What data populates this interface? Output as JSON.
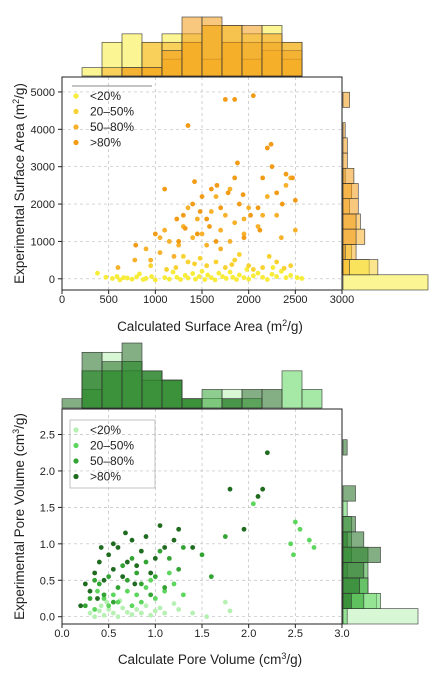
{
  "chart_data": [
    {
      "type": "scatter",
      "xlabel": "Calculated Surface Area (m²/g)",
      "ylabel": "Experimental Surface Area (m²/g)",
      "xlim": [
        0,
        3000
      ],
      "ylim": [
        -300,
        5400
      ],
      "xticks": [
        0,
        500,
        1000,
        1500,
        2000,
        2500,
        3000
      ],
      "yticks": [
        0,
        1000,
        2000,
        3000,
        4000,
        5000
      ],
      "grid": true,
      "legend_placement": "top-left",
      "marginal_histograms": true,
      "series": [
        {
          "name": "<20%",
          "color": "#f7ec3a",
          "points": [
            [
              380,
              150
            ],
            [
              470,
              40
            ],
            [
              540,
              10
            ],
            [
              590,
              60
            ],
            [
              620,
              -30
            ],
            [
              660,
              30
            ],
            [
              700,
              20
            ],
            [
              750,
              -10
            ],
            [
              800,
              50
            ],
            [
              830,
              130
            ],
            [
              870,
              -20
            ],
            [
              900,
              10
            ],
            [
              960,
              60
            ],
            [
              1000,
              -30
            ],
            [
              1100,
              30
            ],
            [
              1150,
              -10
            ],
            [
              1190,
              180
            ],
            [
              1230,
              40
            ],
            [
              1270,
              -20
            ],
            [
              1320,
              90
            ],
            [
              1350,
              20
            ],
            [
              1400,
              140
            ],
            [
              1430,
              -10
            ],
            [
              1470,
              60
            ],
            [
              1500,
              200
            ],
            [
              1530,
              -20
            ],
            [
              1560,
              100
            ],
            [
              1600,
              30
            ],
            [
              1640,
              -30
            ],
            [
              1680,
              150
            ],
            [
              1720,
              60
            ],
            [
              1760,
              10
            ],
            [
              1800,
              180
            ],
            [
              1830,
              40
            ],
            [
              1870,
              -20
            ],
            [
              1900,
              100
            ],
            [
              1950,
              30
            ],
            [
              2000,
              -10
            ],
            [
              2050,
              80
            ],
            [
              2100,
              150
            ],
            [
              2150,
              40
            ],
            [
              2200,
              -20
            ],
            [
              2250,
              120
            ],
            [
              2300,
              60
            ],
            [
              2350,
              200
            ],
            [
              2400,
              30
            ],
            [
              2450,
              90
            ],
            [
              2520,
              30
            ],
            [
              2570,
              10
            ],
            [
              1980,
              250
            ],
            [
              2260,
              300
            ]
          ]
        },
        {
          "name": "20–50%",
          "color": "#f8d230",
          "points": [
            [
              1220,
              300
            ],
            [
              1350,
              450
            ],
            [
              1420,
              400
            ],
            [
              1550,
              350
            ],
            [
              1650,
              450
            ],
            [
              1750,
              300
            ],
            [
              1850,
              500
            ],
            [
              2000,
              350
            ],
            [
              2150,
              300
            ],
            [
              2300,
              450
            ],
            [
              2450,
              350
            ],
            [
              1300,
              600
            ],
            [
              1900,
              650
            ],
            [
              2050,
              250
            ],
            [
              1120,
              250
            ],
            [
              950,
              350
            ],
            [
              1480,
              550
            ],
            [
              2220,
              600
            ],
            [
              1820,
              380
            ],
            [
              2380,
              280
            ]
          ]
        },
        {
          "name": "50–80%",
          "color": "#f7b12a",
          "points": [
            [
              600,
              300
            ],
            [
              780,
              500
            ],
            [
              900,
              800
            ],
            [
              1050,
              700
            ],
            [
              1150,
              1000
            ],
            [
              1250,
              900
            ],
            [
              1300,
              1400
            ],
            [
              1400,
              1100
            ],
            [
              1450,
              1600
            ],
            [
              1500,
              1200
            ],
            [
              1550,
              900
            ],
            [
              1600,
              1800
            ],
            [
              1700,
              1300
            ],
            [
              1750,
              1700
            ],
            [
              1800,
              1000
            ],
            [
              1850,
              1500
            ],
            [
              1950,
              1200
            ],
            [
              2000,
              1900
            ],
            [
              2100,
              1400
            ],
            [
              2200,
              2200
            ],
            [
              2300,
              1700
            ],
            [
              2400,
              2500
            ],
            [
              2500,
              1300
            ],
            [
              2450,
              2700
            ],
            [
              1650,
              2200
            ],
            [
              1350,
              1900
            ],
            [
              1100,
              1300
            ],
            [
              1800,
              2400
            ],
            [
              1950,
              1600
            ],
            [
              1200,
              600
            ],
            [
              950,
              500
            ],
            [
              2150,
              1700
            ],
            [
              1050,
              1100
            ],
            [
              2350,
              1100
            ],
            [
              1700,
              800
            ]
          ]
        },
        {
          "name": ">80%",
          "color": "#f29b16",
          "points": [
            [
              790,
              900
            ],
            [
              1000,
              1200
            ],
            [
              1100,
              2400
            ],
            [
              1250,
              1000
            ],
            [
              1300,
              1700
            ],
            [
              1350,
              4100
            ],
            [
              1400,
              2000
            ],
            [
              1450,
              1200
            ],
            [
              1500,
              2200
            ],
            [
              1550,
              1600
            ],
            [
              1600,
              2400
            ],
            [
              1650,
              1000
            ],
            [
              1700,
              1900
            ],
            [
              1750,
              4800
            ],
            [
              1850,
              4800
            ],
            [
              1850,
              2700
            ],
            [
              1950,
              1100
            ],
            [
              2050,
              4900
            ],
            [
              2100,
              1900
            ],
            [
              2150,
              2700
            ],
            [
              2200,
              3500
            ],
            [
              2250,
              3000
            ],
            [
              2300,
              2300
            ],
            [
              2400,
              2800
            ],
            [
              2470,
              2700
            ],
            [
              2500,
              2100
            ],
            [
              1420,
              2600
            ],
            [
              1580,
              1400
            ],
            [
              1880,
              3100
            ],
            [
              1320,
              1350
            ],
            [
              1780,
              2300
            ],
            [
              2020,
              1700
            ],
            [
              1480,
              1800
            ],
            [
              1900,
              2000
            ],
            [
              2120,
              1300
            ],
            [
              1230,
              1600
            ],
            [
              2240,
              3600
            ],
            [
              1660,
              2500
            ],
            [
              1940,
              2250
            ],
            [
              2360,
              2000
            ]
          ]
        }
      ]
    },
    {
      "type": "scatter",
      "xlabel": "Calculate Pore Volume (cm³/g)",
      "ylabel": "Experimental Pore Volume (cm³/g)",
      "xlim": [
        0,
        3.0
      ],
      "ylim": [
        -0.1,
        2.85
      ],
      "xticks": [
        0.0,
        0.5,
        1.0,
        1.5,
        2.0,
        2.5,
        3.0
      ],
      "yticks": [
        0.0,
        0.5,
        1.0,
        1.5,
        2.0,
        2.5
      ],
      "grid": true,
      "legend_placement": "top-left",
      "marginal_histograms": true,
      "series": [
        {
          "name": "<20%",
          "color": "#b6f0b3",
          "points": [
            [
              0.3,
              0.05
            ],
            [
              0.35,
              0.0
            ],
            [
              0.4,
              0.08
            ],
            [
              0.45,
              0.02
            ],
            [
              0.5,
              0.1
            ],
            [
              0.55,
              0.05
            ],
            [
              0.6,
              0.0
            ],
            [
              0.65,
              0.12
            ],
            [
              0.7,
              0.06
            ],
            [
              0.75,
              0.03
            ],
            [
              0.8,
              0.1
            ],
            [
              0.85,
              0.05
            ],
            [
              0.9,
              0.15
            ],
            [
              0.95,
              0.02
            ],
            [
              1.0,
              0.08
            ],
            [
              1.05,
              0.12
            ],
            [
              1.1,
              0.05
            ],
            [
              1.2,
              0.18
            ],
            [
              1.25,
              0.1
            ],
            [
              1.4,
              0.05
            ],
            [
              1.55,
              0.0
            ],
            [
              1.75,
              0.2
            ],
            [
              1.8,
              0.08
            ],
            [
              0.48,
              0.2
            ],
            [
              0.62,
              0.22
            ],
            [
              0.42,
              0.15
            ]
          ]
        },
        {
          "name": "20–50%",
          "color": "#5cd65c",
          "points": [
            [
              0.35,
              0.1
            ],
            [
              0.45,
              0.25
            ],
            [
              0.5,
              0.15
            ],
            [
              0.55,
              0.3
            ],
            [
              0.6,
              0.2
            ],
            [
              0.7,
              0.35
            ],
            [
              0.75,
              0.15
            ],
            [
              0.8,
              0.3
            ],
            [
              0.85,
              0.2
            ],
            [
              0.9,
              0.4
            ],
            [
              1.0,
              0.25
            ],
            [
              1.1,
              0.35
            ],
            [
              1.2,
              0.45
            ],
            [
              1.3,
              0.3
            ],
            [
              2.5,
              1.3
            ],
            [
              2.55,
              1.2
            ],
            [
              2.45,
              1.0
            ],
            [
              2.65,
              1.05
            ],
            [
              2.7,
              0.95
            ],
            [
              2.48,
              0.85
            ],
            [
              2.05,
              1.55
            ],
            [
              0.38,
              0.35
            ],
            [
              0.95,
              0.5
            ],
            [
              1.15,
              0.6
            ]
          ]
        },
        {
          "name": "50–80%",
          "color": "#33a333",
          "points": [
            [
              0.3,
              0.25
            ],
            [
              0.4,
              0.45
            ],
            [
              0.5,
              0.55
            ],
            [
              0.6,
              0.4
            ],
            [
              0.65,
              0.7
            ],
            [
              0.7,
              0.5
            ],
            [
              0.8,
              0.6
            ],
            [
              0.9,
              0.75
            ],
            [
              1.0,
              0.55
            ],
            [
              1.05,
              0.9
            ],
            [
              1.15,
              0.8
            ],
            [
              1.25,
              0.65
            ],
            [
              1.3,
              0.95
            ],
            [
              1.5,
              0.85
            ],
            [
              1.75,
              1.1
            ],
            [
              0.45,
              0.3
            ],
            [
              0.55,
              0.2
            ],
            [
              0.75,
              0.8
            ],
            [
              0.85,
              0.45
            ],
            [
              1.1,
              0.4
            ],
            [
              0.35,
              0.5
            ],
            [
              1.6,
              0.55
            ],
            [
              0.25,
              0.15
            ],
            [
              0.95,
              0.3
            ]
          ]
        },
        {
          "name": ">80%",
          "color": "#1f6b1f",
          "points": [
            [
              0.2,
              0.15
            ],
            [
              0.3,
              0.35
            ],
            [
              0.35,
              0.6
            ],
            [
              0.4,
              0.75
            ],
            [
              0.45,
              0.5
            ],
            [
              0.5,
              0.85
            ],
            [
              0.55,
              0.65
            ],
            [
              0.6,
              0.95
            ],
            [
              0.65,
              0.55
            ],
            [
              0.7,
              0.75
            ],
            [
              0.75,
              1.05
            ],
            [
              0.8,
              0.7
            ],
            [
              0.85,
              0.9
            ],
            [
              0.9,
              1.1
            ],
            [
              1.0,
              0.8
            ],
            [
              1.1,
              0.95
            ],
            [
              1.2,
              1.05
            ],
            [
              1.25,
              1.2
            ],
            [
              1.4,
              0.95
            ],
            [
              1.8,
              1.75
            ],
            [
              1.95,
              1.2
            ],
            [
              2.1,
              1.65
            ],
            [
              2.15,
              1.75
            ],
            [
              2.2,
              2.25
            ],
            [
              0.25,
              0.45
            ],
            [
              0.55,
              1.0
            ],
            [
              0.68,
              1.15
            ],
            [
              0.42,
              0.95
            ],
            [
              0.78,
              0.45
            ],
            [
              0.95,
              0.6
            ],
            [
              1.05,
              1.25
            ],
            [
              0.38,
              0.25
            ]
          ]
        }
      ]
    }
  ]
}
